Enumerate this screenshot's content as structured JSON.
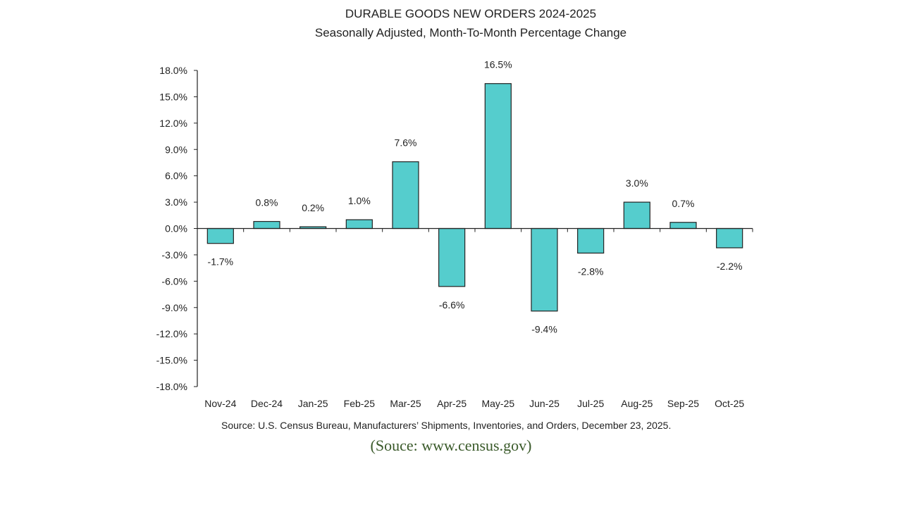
{
  "chart_data": {
    "type": "bar",
    "title": "DURABLE GOODS NEW ORDERS 2024-2025",
    "subtitle": "Seasonally Adjusted,  Month-To-Month Percentage Change",
    "categories": [
      "Nov-24",
      "Dec-24",
      "Jan-25",
      "Feb-25",
      "Mar-25",
      "Apr-25",
      "May-25",
      "Jun-25",
      "Jul-25",
      "Aug-25",
      "Sep-25",
      "Oct-25"
    ],
    "values": [
      -1.7,
      0.8,
      0.2,
      1.0,
      7.6,
      -6.6,
      16.5,
      -9.4,
      -2.8,
      3.0,
      0.7,
      -2.2
    ],
    "data_labels": [
      "-1.7%",
      "0.8%",
      "0.2%",
      "1.0%",
      "7.6%",
      "-6.6%",
      "16.5%",
      "-9.4%",
      "-2.8%",
      "3.0%",
      "0.7%",
      "-2.2%"
    ],
    "xlabel": "",
    "ylabel": "",
    "ylim": [
      -18,
      18
    ],
    "yticks": [
      "18.0%",
      "15.0%",
      "12.0%",
      "9.0%",
      "6.0%",
      "3.0%",
      "0.0%",
      "-3.0%",
      "-6.0%",
      "-9.0%",
      "-12.0%",
      "-15.0%",
      "-18.0%"
    ],
    "ytick_values": [
      18,
      15,
      12,
      9,
      6,
      3,
      0,
      -3,
      -6,
      -9,
      -12,
      -15,
      -18
    ],
    "grid": false,
    "legend": "none",
    "bar_color": "#55CDCD",
    "bar_edge_color": "#222222",
    "source": "Source: U.S. Census Bureau, Manufacturers’ Shipments, Inventories, and Orders, December 23, 2025."
  },
  "caption": "(Souce: www.census.gov)"
}
